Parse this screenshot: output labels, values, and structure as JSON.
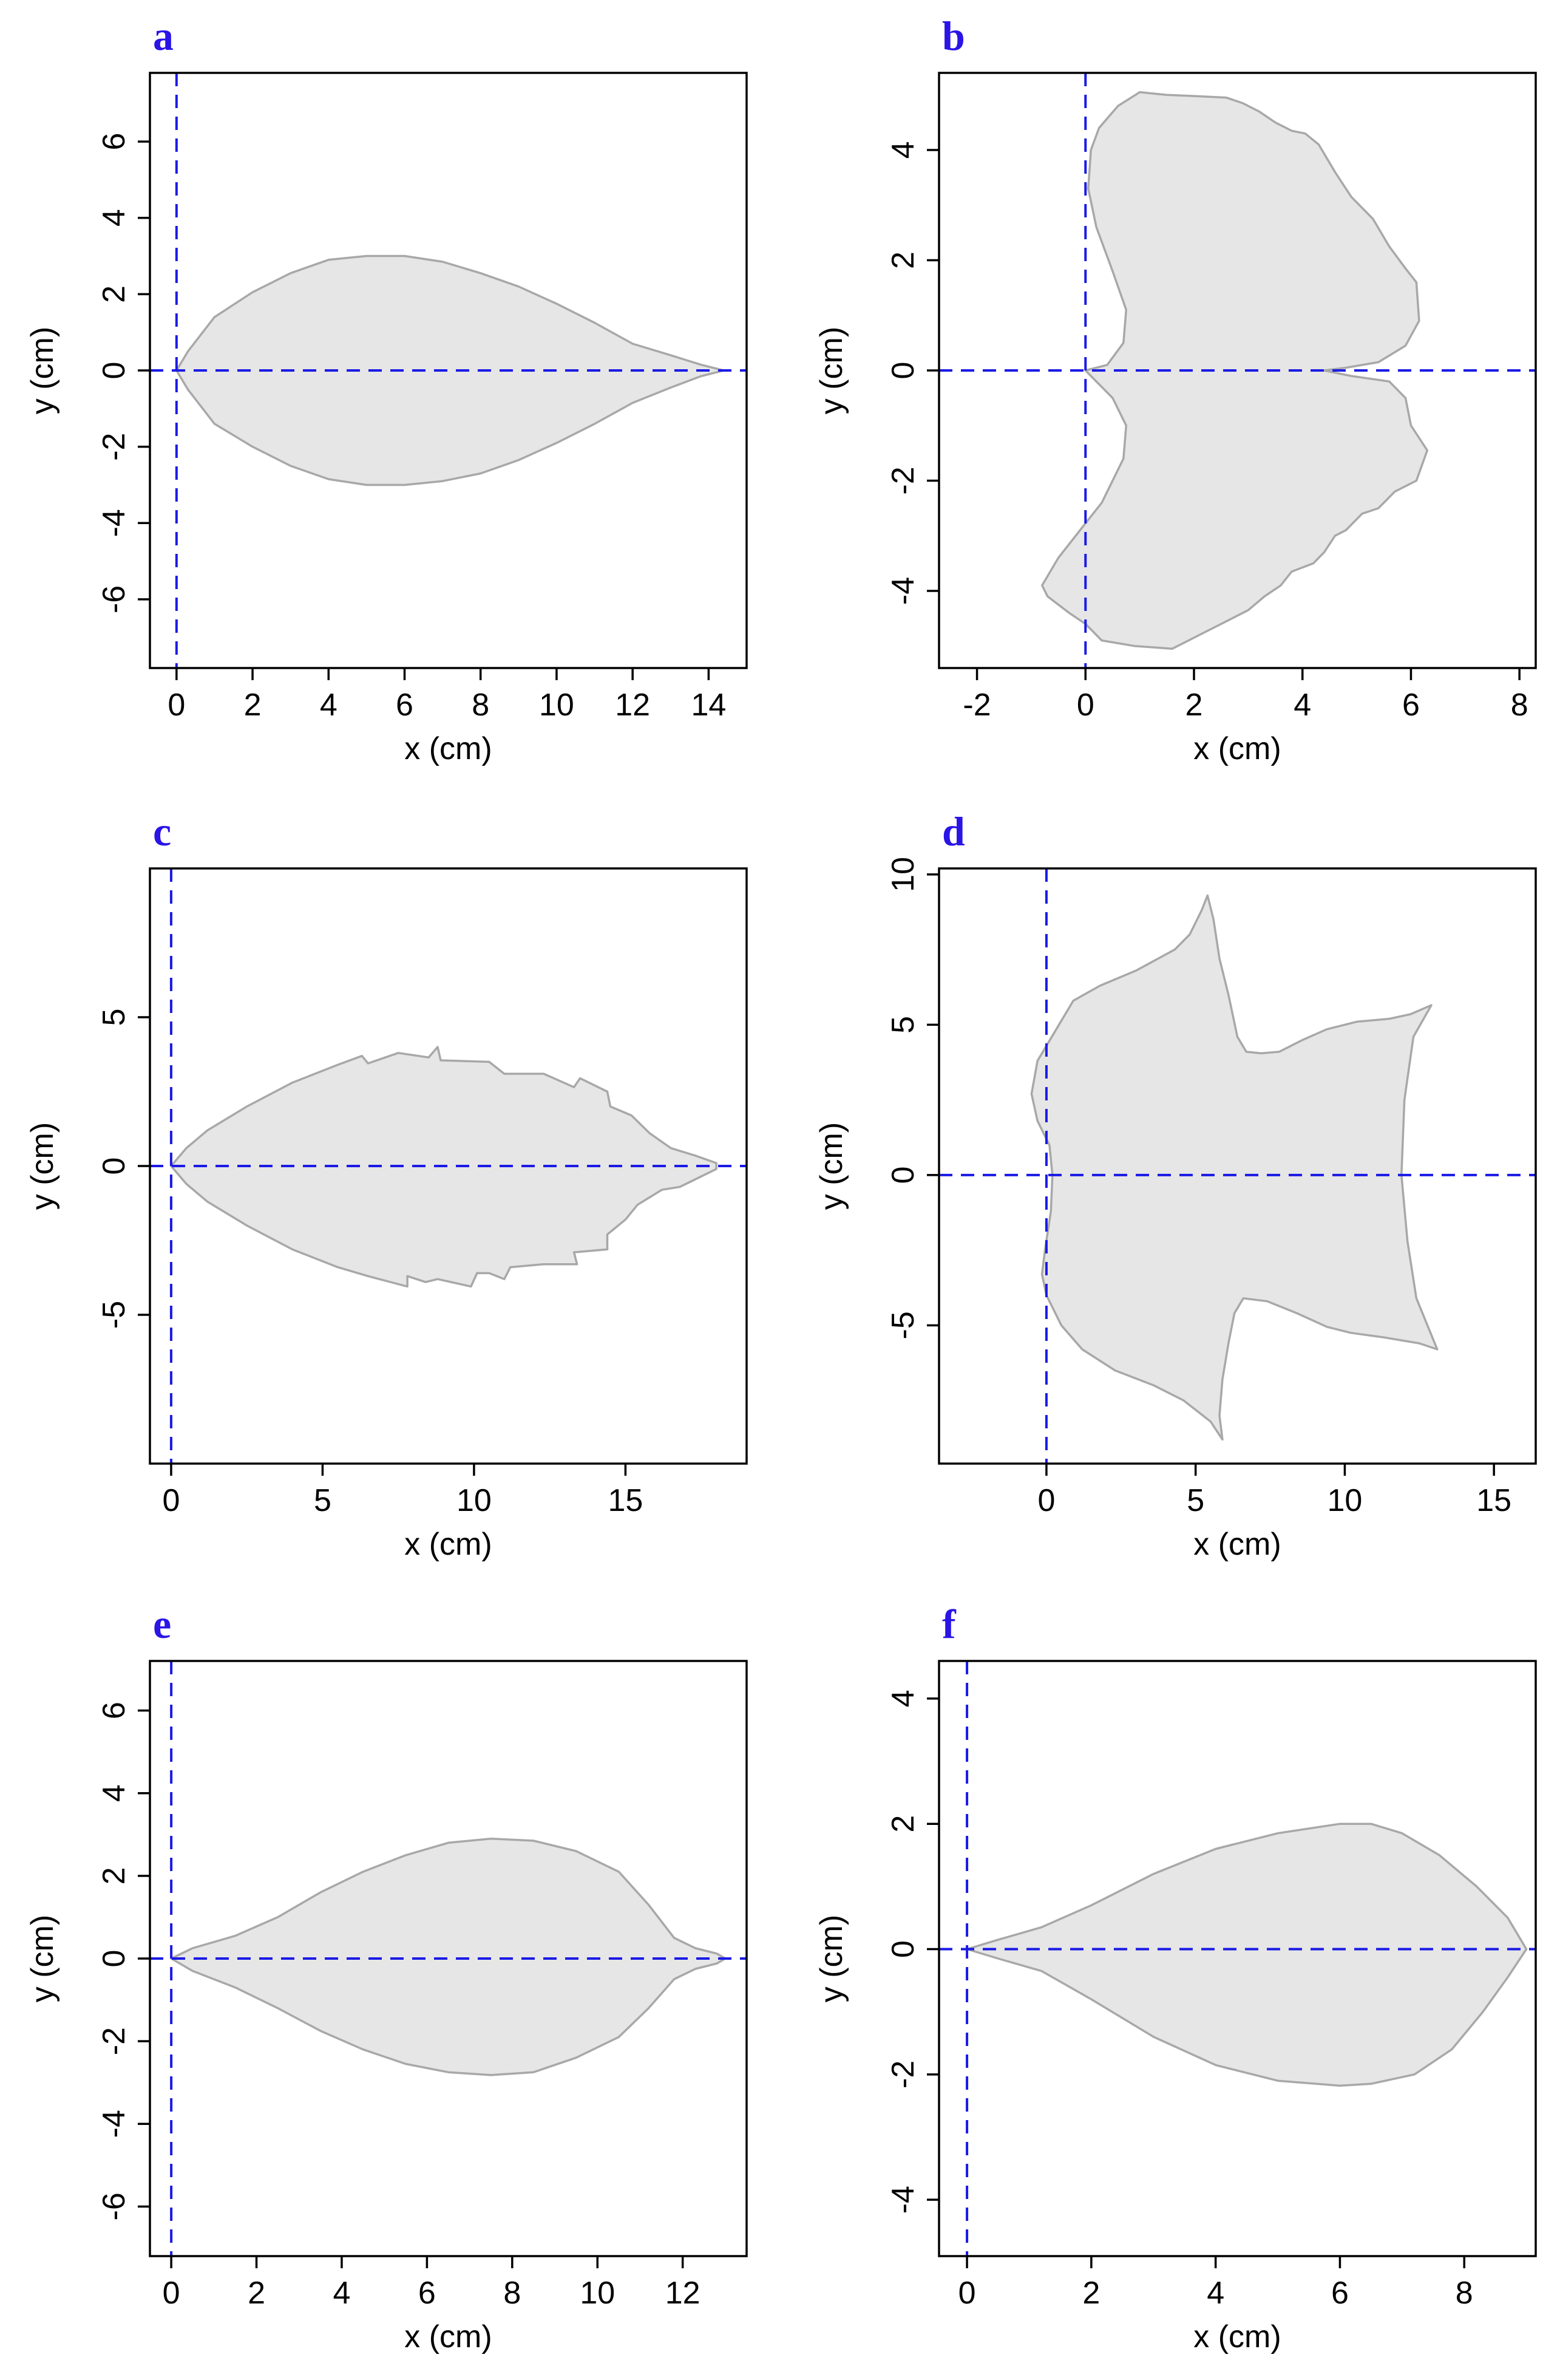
{
  "chart_data": [
    {
      "panel": "a",
      "type": "area",
      "xlabel": "x (cm)",
      "ylabel": "y (cm)",
      "xlim": [
        -0.7,
        15
      ],
      "ylim": [
        -7.8,
        7.8
      ],
      "xticks": [
        0,
        2,
        4,
        6,
        8,
        10,
        12,
        14
      ],
      "yticks": [
        -6,
        -4,
        -2,
        0,
        2,
        4,
        6
      ],
      "reference_lines": {
        "x": 0,
        "y": 0
      },
      "outline": [
        [
          0,
          0
        ],
        [
          0.3,
          0.5
        ],
        [
          1,
          1.4
        ],
        [
          2,
          2.05
        ],
        [
          3,
          2.55
        ],
        [
          4,
          2.9
        ],
        [
          5,
          3.0
        ],
        [
          6,
          3.0
        ],
        [
          7,
          2.85
        ],
        [
          8,
          2.55
        ],
        [
          9,
          2.2
        ],
        [
          10,
          1.75
        ],
        [
          11,
          1.25
        ],
        [
          12,
          0.7
        ],
        [
          13,
          0.4
        ],
        [
          13.8,
          0.15
        ],
        [
          14.4,
          0
        ],
        [
          13.8,
          -0.15
        ],
        [
          13,
          -0.45
        ],
        [
          12,
          -0.85
        ],
        [
          11,
          -1.4
        ],
        [
          10,
          -1.9
        ],
        [
          9,
          -2.35
        ],
        [
          8,
          -2.7
        ],
        [
          7,
          -2.9
        ],
        [
          6,
          -3.0
        ],
        [
          5,
          -3.0
        ],
        [
          4,
          -2.85
        ],
        [
          3,
          -2.5
        ],
        [
          2,
          -2.0
        ],
        [
          1,
          -1.4
        ],
        [
          0.3,
          -0.5
        ],
        [
          0,
          0
        ]
      ]
    },
    {
      "panel": "b",
      "type": "area",
      "xlabel": "x (cm)",
      "ylabel": "y (cm)",
      "xlim": [
        -2.7,
        8.3
      ],
      "ylim": [
        -5.4,
        5.4
      ],
      "xticks": [
        -2,
        0,
        2,
        4,
        6,
        8
      ],
      "yticks": [
        -4,
        -2,
        0,
        2,
        4
      ],
      "reference_lines": {
        "x": 0,
        "y": 0
      },
      "outline": [
        [
          0,
          0
        ],
        [
          0.4,
          0.1
        ],
        [
          0.7,
          0.5
        ],
        [
          0.75,
          1.1
        ],
        [
          0.5,
          1.8
        ],
        [
          0.2,
          2.6
        ],
        [
          0.05,
          3.3
        ],
        [
          0.1,
          4
        ],
        [
          0.25,
          4.4
        ],
        [
          0.6,
          4.8
        ],
        [
          1,
          5.05
        ],
        [
          1.5,
          5.0
        ],
        [
          2,
          4.98
        ],
        [
          2.6,
          4.95
        ],
        [
          2.9,
          4.85
        ],
        [
          3.2,
          4.7
        ],
        [
          3.5,
          4.5
        ],
        [
          3.8,
          4.35
        ],
        [
          4.05,
          4.3
        ],
        [
          4.3,
          4.1
        ],
        [
          4.6,
          3.6
        ],
        [
          4.9,
          3.15
        ],
        [
          5.3,
          2.75
        ],
        [
          5.6,
          2.25
        ],
        [
          5.9,
          1.85
        ],
        [
          6.1,
          1.6
        ],
        [
          6.15,
          0.9
        ],
        [
          5.9,
          0.45
        ],
        [
          5.4,
          0.15
        ],
        [
          4.8,
          0.05
        ],
        [
          4.4,
          0
        ],
        [
          4.9,
          -0.1
        ],
        [
          5.6,
          -0.2
        ],
        [
          5.9,
          -0.5
        ],
        [
          6.0,
          -1.0
        ],
        [
          6.3,
          -1.45
        ],
        [
          6.1,
          -2.0
        ],
        [
          5.7,
          -2.2
        ],
        [
          5.4,
          -2.5
        ],
        [
          5.1,
          -2.6
        ],
        [
          4.8,
          -2.9
        ],
        [
          4.6,
          -3.0
        ],
        [
          4.4,
          -3.3
        ],
        [
          4.2,
          -3.5
        ],
        [
          3.8,
          -3.65
        ],
        [
          3.6,
          -3.9
        ],
        [
          3.3,
          -4.1
        ],
        [
          3.0,
          -4.35
        ],
        [
          2.6,
          -4.55
        ],
        [
          2.2,
          -4.75
        ],
        [
          1.6,
          -5.05
        ],
        [
          0.9,
          -5.0
        ],
        [
          0.3,
          -4.9
        ],
        [
          0,
          -4.6
        ],
        [
          -0.3,
          -4.4
        ],
        [
          -0.7,
          -4.1
        ],
        [
          -0.8,
          -3.9
        ],
        [
          -0.5,
          -3.4
        ],
        [
          -0.1,
          -2.9
        ],
        [
          0.3,
          -2.4
        ],
        [
          0.7,
          -1.6
        ],
        [
          0.75,
          -1.0
        ],
        [
          0.5,
          -0.5
        ],
        [
          0.1,
          -0.1
        ],
        [
          0,
          0
        ]
      ]
    },
    {
      "panel": "c",
      "type": "area",
      "xlabel": "x (cm)",
      "ylabel": "y (cm)",
      "xlim": [
        -0.7,
        19
      ],
      "ylim": [
        -10,
        10
      ],
      "xticks": [
        0,
        5,
        10,
        15
      ],
      "yticks": [
        -5,
        0,
        5
      ],
      "reference_lines": {
        "x": 0,
        "y": 0
      },
      "outline": [
        [
          0,
          0
        ],
        [
          0.5,
          0.6
        ],
        [
          1.2,
          1.2
        ],
        [
          2.5,
          2
        ],
        [
          4,
          2.8
        ],
        [
          5.5,
          3.4
        ],
        [
          6.3,
          3.7
        ],
        [
          6.5,
          3.45
        ],
        [
          7.5,
          3.8
        ],
        [
          8.5,
          3.65
        ],
        [
          8.8,
          4.0
        ],
        [
          8.9,
          3.55
        ],
        [
          10.5,
          3.5
        ],
        [
          11.0,
          3.1
        ],
        [
          12.3,
          3.1
        ],
        [
          13.3,
          2.65
        ],
        [
          13.5,
          2.95
        ],
        [
          14.4,
          2.5
        ],
        [
          14.5,
          2.0
        ],
        [
          15.2,
          1.7
        ],
        [
          15.8,
          1.1
        ],
        [
          16.5,
          0.6
        ],
        [
          17.3,
          0.35
        ],
        [
          18.0,
          0.1
        ],
        [
          18.0,
          -0.1
        ],
        [
          17.2,
          -0.5
        ],
        [
          16.8,
          -0.7
        ],
        [
          16.2,
          -0.8
        ],
        [
          15.4,
          -1.3
        ],
        [
          15.0,
          -1.8
        ],
        [
          14.4,
          -2.3
        ],
        [
          14.4,
          -2.8
        ],
        [
          13.3,
          -2.9
        ],
        [
          13.4,
          -3.3
        ],
        [
          12.3,
          -3.3
        ],
        [
          11.2,
          -3.4
        ],
        [
          11.0,
          -3.8
        ],
        [
          10.5,
          -3.6
        ],
        [
          10.1,
          -3.6
        ],
        [
          9.9,
          -4.05
        ],
        [
          8.8,
          -3.8
        ],
        [
          8.4,
          -3.9
        ],
        [
          7.8,
          -3.7
        ],
        [
          7.8,
          -4.05
        ],
        [
          6.5,
          -3.7
        ],
        [
          5.5,
          -3.4
        ],
        [
          4.0,
          -2.8
        ],
        [
          2.5,
          -2.0
        ],
        [
          1.2,
          -1.2
        ],
        [
          0.5,
          -0.6
        ],
        [
          0,
          0
        ]
      ]
    },
    {
      "panel": "d",
      "type": "area",
      "xlabel": "x (cm)",
      "ylabel": "y (cm)",
      "xlim": [
        -3.6,
        16.4
      ],
      "ylim": [
        -9.6,
        10.2
      ],
      "xticks": [
        0,
        5,
        10,
        15
      ],
      "yticks": [
        -5,
        0,
        5,
        10
      ],
      "reference_lines": {
        "x": 0,
        "y": 0
      },
      "outline": [
        [
          0.2,
          0
        ],
        [
          0.1,
          1.0
        ],
        [
          -0.3,
          1.8
        ],
        [
          -0.5,
          2.7
        ],
        [
          -0.3,
          3.8
        ],
        [
          0.3,
          4.8
        ],
        [
          0.9,
          5.8
        ],
        [
          1.8,
          6.3
        ],
        [
          3.0,
          6.8
        ],
        [
          4.3,
          7.5
        ],
        [
          4.8,
          8.0
        ],
        [
          5.2,
          8.8
        ],
        [
          5.4,
          9.3
        ],
        [
          5.6,
          8.5
        ],
        [
          5.8,
          7.2
        ],
        [
          6.1,
          6.0
        ],
        [
          6.4,
          4.6
        ],
        [
          6.7,
          4.1
        ],
        [
          7.2,
          4.05
        ],
        [
          7.8,
          4.1
        ],
        [
          8.6,
          4.5
        ],
        [
          9.4,
          4.85
        ],
        [
          10.4,
          5.1
        ],
        [
          11.5,
          5.2
        ],
        [
          12.2,
          5.35
        ],
        [
          12.9,
          5.65
        ],
        [
          12.3,
          4.6
        ],
        [
          12.0,
          2.5
        ],
        [
          11.9,
          0
        ],
        [
          12.1,
          -2.2
        ],
        [
          12.4,
          -4.1
        ],
        [
          13.1,
          -5.8
        ],
        [
          12.5,
          -5.6
        ],
        [
          11.3,
          -5.4
        ],
        [
          10.2,
          -5.25
        ],
        [
          9.4,
          -5.05
        ],
        [
          8.4,
          -4.6
        ],
        [
          7.4,
          -4.2
        ],
        [
          6.6,
          -4.1
        ],
        [
          6.3,
          -4.6
        ],
        [
          6.1,
          -5.6
        ],
        [
          5.9,
          -6.8
        ],
        [
          5.8,
          -8.0
        ],
        [
          5.9,
          -8.8
        ],
        [
          5.5,
          -8.2
        ],
        [
          4.6,
          -7.5
        ],
        [
          3.6,
          -7.0
        ],
        [
          2.3,
          -6.5
        ],
        [
          1.2,
          -5.8
        ],
        [
          0.5,
          -5.0
        ],
        [
          0.0,
          -4.0
        ],
        [
          -0.15,
          -3.3
        ],
        [
          -0.05,
          -2.5
        ],
        [
          0.15,
          -1.2
        ],
        [
          0.2,
          0
        ]
      ]
    },
    {
      "panel": "e",
      "type": "area",
      "xlabel": "x (cm)",
      "ylabel": "y (cm)",
      "xlim": [
        -0.5,
        13.5
      ],
      "ylim": [
        -7.2,
        7.2
      ],
      "xticks": [
        0,
        2,
        4,
        6,
        8,
        10,
        12
      ],
      "yticks": [
        -6,
        -4,
        -2,
        0,
        2,
        4,
        6
      ],
      "reference_lines": {
        "x": 0,
        "y": 0
      },
      "outline": [
        [
          0,
          0
        ],
        [
          0.5,
          0.25
        ],
        [
          1.5,
          0.55
        ],
        [
          2.5,
          1.0
        ],
        [
          3.5,
          1.6
        ],
        [
          4.5,
          2.1
        ],
        [
          5.5,
          2.5
        ],
        [
          6.5,
          2.8
        ],
        [
          7.5,
          2.9
        ],
        [
          8.5,
          2.85
        ],
        [
          9.5,
          2.6
        ],
        [
          10.5,
          2.1
        ],
        [
          11.2,
          1.3
        ],
        [
          11.8,
          0.5
        ],
        [
          12.3,
          0.25
        ],
        [
          12.8,
          0.12
        ],
        [
          13.0,
          0
        ],
        [
          12.8,
          -0.12
        ],
        [
          12.3,
          -0.25
        ],
        [
          11.8,
          -0.5
        ],
        [
          11.2,
          -1.2
        ],
        [
          10.5,
          -1.9
        ],
        [
          9.5,
          -2.4
        ],
        [
          8.5,
          -2.75
        ],
        [
          7.5,
          -2.82
        ],
        [
          6.5,
          -2.75
        ],
        [
          5.5,
          -2.55
        ],
        [
          4.5,
          -2.2
        ],
        [
          3.5,
          -1.75
        ],
        [
          2.5,
          -1.2
        ],
        [
          1.5,
          -0.7
        ],
        [
          0.5,
          -0.3
        ],
        [
          0,
          0
        ]
      ]
    },
    {
      "panel": "f",
      "type": "area",
      "xlabel": "x (cm)",
      "ylabel": "y (cm)",
      "xlim": [
        -0.45,
        9.15
      ],
      "ylim": [
        -4.9,
        4.6
      ],
      "xticks": [
        0,
        2,
        4,
        6,
        8
      ],
      "yticks": [
        -4,
        -2,
        0,
        2,
        4
      ],
      "reference_lines": {
        "x": 0,
        "y": 0
      },
      "outline": [
        [
          0,
          0
        ],
        [
          0.5,
          0.15
        ],
        [
          1.2,
          0.35
        ],
        [
          2.0,
          0.7
        ],
        [
          3.0,
          1.2
        ],
        [
          4.0,
          1.6
        ],
        [
          5.0,
          1.85
        ],
        [
          6.0,
          2.0
        ],
        [
          6.5,
          2.0
        ],
        [
          7.0,
          1.85
        ],
        [
          7.6,
          1.5
        ],
        [
          8.2,
          1.0
        ],
        [
          8.7,
          0.5
        ],
        [
          9.0,
          0
        ],
        [
          8.7,
          -0.45
        ],
        [
          8.3,
          -1.0
        ],
        [
          7.8,
          -1.6
        ],
        [
          7.2,
          -2.0
        ],
        [
          6.5,
          -2.15
        ],
        [
          6.0,
          -2.18
        ],
        [
          5.0,
          -2.1
        ],
        [
          4.0,
          -1.85
        ],
        [
          3.0,
          -1.4
        ],
        [
          2.0,
          -0.8
        ],
        [
          1.2,
          -0.35
        ],
        [
          0.5,
          -0.15
        ],
        [
          0,
          0
        ]
      ]
    }
  ]
}
